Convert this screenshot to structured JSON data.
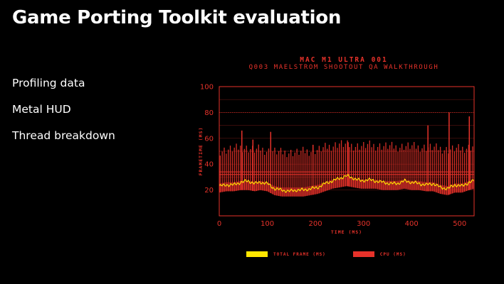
{
  "slide": {
    "title": "Game Porting Toolkit evaluation",
    "bullets": [
      "Profiling data",
      "Metal HUD",
      "Thread breakdown"
    ]
  },
  "chart_data": {
    "type": "line",
    "title": "MAC M1 ULTRA 001",
    "subtitle": "Q003 MAELSTROM SHOOTOUT QA WALKTHROUGH",
    "xlabel": "TIME (MS)",
    "ylabel": "FRAMETIME (MS)",
    "xlim": [
      0,
      530
    ],
    "ylim": [
      0,
      100
    ],
    "xticks": [
      0,
      100,
      200,
      300,
      400,
      500
    ],
    "yticks": [
      20,
      30,
      40,
      50,
      60,
      70,
      80,
      90,
      100
    ],
    "ytick_labels": [
      "20",
      "",
      "40",
      "",
      "60",
      "",
      "80",
      "",
      "100"
    ],
    "grid": true,
    "reference_lines": [
      80,
      50,
      34,
      32
    ],
    "legend_position": "bottom",
    "colors": {
      "total_frame": "#ffe600",
      "cpu": "#e6322a",
      "axis": "#e6322a"
    },
    "series": [
      {
        "name": "TOTAL FRAME (MS)",
        "x": [
          0,
          15,
          30,
          45,
          60,
          75,
          85,
          100,
          115,
          130,
          145,
          160,
          175,
          190,
          205,
          220,
          235,
          250,
          265,
          280,
          295,
          310,
          325,
          340,
          355,
          370,
          385,
          400,
          415,
          430,
          445,
          460,
          475,
          490,
          505,
          520,
          530
        ],
        "values": [
          23,
          24,
          24,
          26,
          27,
          25,
          26,
          25,
          21,
          20,
          19,
          20,
          20,
          21,
          22,
          25,
          27,
          29,
          31,
          29,
          27,
          28,
          27,
          26,
          25,
          25,
          27,
          26,
          25,
          24,
          25,
          22,
          21,
          24,
          23,
          26,
          27
        ]
      },
      {
        "name": "CPU (MS)",
        "band_low": [
          18,
          19,
          19,
          20,
          20,
          19,
          20,
          19,
          16,
          15,
          15,
          15,
          15,
          16,
          17,
          19,
          21,
          22,
          23,
          22,
          21,
          21,
          21,
          20,
          20,
          20,
          21,
          20,
          20,
          19,
          19,
          17,
          16,
          18,
          18,
          20,
          21
        ],
        "band_high": [
          50,
          51,
          52,
          53,
          52,
          51,
          52,
          50,
          50,
          49,
          49,
          49,
          50,
          50,
          51,
          53,
          54,
          56,
          55,
          54,
          54,
          55,
          54,
          54,
          54,
          53,
          54,
          54,
          53,
          53,
          53,
          52,
          51,
          52,
          52,
          53,
          54
        ],
        "spikes": [
          {
            "x": 47,
            "y": 66
          },
          {
            "x": 70,
            "y": 59
          },
          {
            "x": 107,
            "y": 65
          },
          {
            "x": 195,
            "y": 55
          },
          {
            "x": 268,
            "y": 57
          },
          {
            "x": 434,
            "y": 70
          },
          {
            "x": 478,
            "y": 80
          },
          {
            "x": 520,
            "y": 77
          }
        ]
      }
    ]
  }
}
